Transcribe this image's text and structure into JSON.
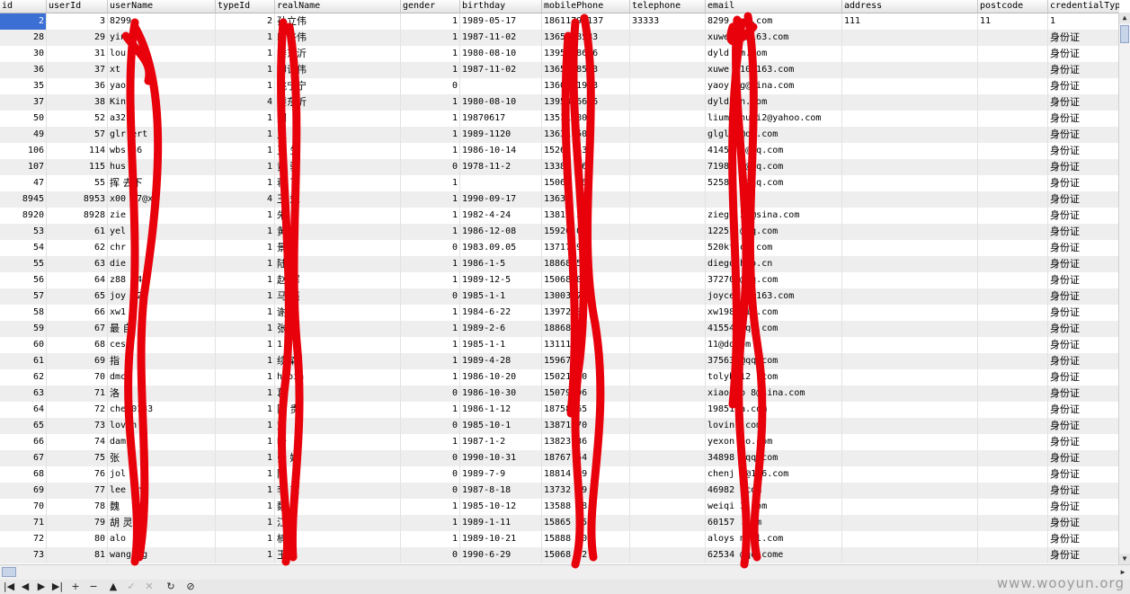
{
  "columns": [
    "id",
    "userId",
    "userName",
    "typeId",
    "realName",
    "gender",
    "birthday",
    "mobilePhone",
    "telephone",
    "email",
    "address",
    "postcode",
    "credentialTyp"
  ],
  "rows": [
    {
      "id": "2",
      "userId": "3",
      "userName": "8299",
      "typeId": "2",
      "realName": "孙立伟",
      "gender": "1",
      "birthday": "1989-05-17",
      "mobilePhone": "18611798137",
      "telephone": "33333",
      "email": "8299  @qq.com",
      "address": "111",
      "postcode": "11",
      "credentialTyp": "1"
    },
    {
      "id": "28",
      "userId": "29",
      "userName": "yin",
      "typeId": "1",
      "realName": "印许伟",
      "gender": "1",
      "birthday": "1987-11-02",
      "mobilePhone": "13656 8583",
      "telephone": "",
      "email": "xuwe  10@163.com",
      "address": "",
      "postcode": "",
      "credentialTyp": "身份证"
    },
    {
      "id": "30",
      "userId": "31",
      "userName": "lou",
      "typeId": "1",
      "realName": "楼东沂",
      "gender": "1",
      "birthday": "1980-08-10",
      "mobilePhone": "13958 8626",
      "telephone": "",
      "email": "dyld   om.com",
      "address": "",
      "postcode": "",
      "credentialTyp": "身份证"
    },
    {
      "id": "36",
      "userId": "37",
      "userName": "xt",
      "typeId": "1",
      "realName": "印许伟",
      "gender": "1",
      "birthday": "1987-11-02",
      "mobilePhone": "13656 8583",
      "telephone": "",
      "email": "xuwe  010@163.com",
      "address": "",
      "postcode": "",
      "credentialTyp": "身份证"
    },
    {
      "id": "35",
      "userId": "36",
      "userName": "yao",
      "typeId": "1",
      "realName": "姚宁宁",
      "gender": "0",
      "birthday": "",
      "mobilePhone": "13605 1923",
      "telephone": "",
      "email": "yaoy   ng@sina.com",
      "address": "",
      "postcode": "",
      "credentialTyp": "身份证"
    },
    {
      "id": "37",
      "userId": "38",
      "userName": "Kin",
      "typeId": "4",
      "realName": "楼东沂",
      "gender": "1",
      "birthday": "1980-08-10",
      "mobilePhone": "13958 6626",
      "telephone": "",
      "email": "dyld   sn.com",
      "address": "",
      "postcode": "",
      "credentialTyp": "身份证"
    },
    {
      "id": "50",
      "userId": "52",
      "userName": "a32",
      "typeId": "1",
      "realName": "刘",
      "gender": "1",
      "birthday": "19870617",
      "mobilePhone": "13511 808",
      "telephone": "",
      "email": "liumi  huai2@yahoo.com",
      "address": "",
      "postcode": "",
      "credentialTyp": "身份证"
    },
    {
      "id": "49",
      "userId": "57",
      "userName": "glr  ert",
      "typeId": "1",
      "realName": "王",
      "gender": "1",
      "birthday": " 1989-1120",
      "mobilePhone": "13631 508",
      "telephone": "",
      "email": "glgl   8@qq.com",
      "address": "",
      "postcode": "",
      "credentialTyp": "身份证"
    },
    {
      "id": "106",
      "userId": "114",
      "userName": "wbs  36",
      "typeId": "1",
      "realName": "王  生",
      "gender": "1",
      "birthday": "1986-10-14",
      "mobilePhone": "15267 432",
      "telephone": "",
      "email": "41456  8@qq.com",
      "address": "",
      "postcode": "",
      "credentialTyp": "身份证"
    },
    {
      "id": "107",
      "userId": "115",
      "userName": "hus",
      "typeId": "1",
      "realName": "黄  骏",
      "gender": "0",
      "birthday": "1978-11-2",
      "mobilePhone": "13388 367",
      "telephone": "",
      "email": "71986  9@qq.com",
      "address": "",
      "postcode": "",
      "credentialTyp": "身份证"
    },
    {
      "id": "47",
      "userId": "55",
      "userName": "挥  去下",
      "typeId": "1",
      "realName": "蒋  飞",
      "gender": "1",
      "birthday": "",
      "mobilePhone": "15068 06",
      "telephone": "",
      "email": "52589  6@qq.com",
      "address": "",
      "postcode": "",
      "credentialTyp": "身份证"
    },
    {
      "id": "8945",
      "userId": "8953",
      "userName": "x00  47@x",
      "typeId": "4",
      "realName": "王  斌",
      "gender": "1",
      "birthday": "1990-09-17",
      "mobilePhone": "13634 48",
      "telephone": "",
      "email": "",
      "address": "",
      "postcode": "",
      "credentialTyp": "身份证"
    },
    {
      "id": "8920",
      "userId": "8928",
      "userName": "zie",
      "typeId": "1",
      "realName": "朱",
      "gender": "1",
      "birthday": "1982-4-24",
      "mobilePhone": "13816 39",
      "telephone": "",
      "email": "ziegl  24@sina.com",
      "address": "",
      "postcode": "",
      "credentialTyp": "身份证"
    },
    {
      "id": "53",
      "userId": "61",
      "userName": "yel",
      "typeId": "1",
      "realName": "黄",
      "gender": "1",
      "birthday": "1986-12-08",
      "mobilePhone": "15920 0",
      "telephone": "",
      "email": "12251  @qq.com",
      "address": "",
      "postcode": "",
      "credentialTyp": "身份证"
    },
    {
      "id": "54",
      "userId": "62",
      "userName": "chr  n",
      "typeId": "1",
      "realName": "景",
      "gender": "0",
      "birthday": "1983.09.05",
      "mobilePhone": "13717 9",
      "telephone": "",
      "email": "520kt  om.com",
      "address": "",
      "postcode": "",
      "credentialTyp": "身份证"
    },
    {
      "id": "55",
      "userId": "63",
      "userName": "die",
      "typeId": "1",
      "realName": "陆",
      "gender": "1",
      "birthday": "1986-1-5",
      "mobilePhone": "18868 5",
      "telephone": "",
      "email": "diego  hoo.cn",
      "address": "",
      "postcode": "",
      "credentialTyp": "身份证"
    },
    {
      "id": "56",
      "userId": "64",
      "userName": "z88  74a",
      "typeId": "1",
      "realName": "赵  晖",
      "gender": "1",
      "birthday": "1989-12-5",
      "mobilePhone": "15068 07",
      "telephone": "",
      "email": "37270  @qq.com",
      "address": "",
      "postcode": "",
      "credentialTyp": "身份证"
    },
    {
      "id": "57",
      "userId": "65",
      "userName": "joy  52",
      "typeId": "1",
      "realName": "马  燕",
      "gender": "0",
      "birthday": "1985-1-1",
      "mobilePhone": "13003 76",
      "telephone": "",
      "email": "joyce  12@163.com",
      "address": "",
      "postcode": "",
      "credentialTyp": "身份证"
    },
    {
      "id": "58",
      "userId": "66",
      "userName": "xw1",
      "typeId": "1",
      "realName": "谢",
      "gender": "1",
      "birthday": "1984-6-22",
      "mobilePhone": "13972 88",
      "telephone": "",
      "email": "xw198  ail.com",
      "address": "",
      "postcode": "",
      "credentialTyp": "身份证"
    },
    {
      "id": "59",
      "userId": "67",
      "userName": "最  自",
      "typeId": "1",
      "realName": "张",
      "gender": "1",
      "birthday": "1989-2-6",
      "mobilePhone": "18868 0",
      "telephone": "",
      "email": "41554  @qq.com",
      "address": "",
      "postcode": "",
      "credentialTyp": "身份证"
    },
    {
      "id": "60",
      "userId": "68",
      "userName": "ces",
      "typeId": "1",
      "realName": "1",
      "gender": "1",
      "birthday": "1985-1-1",
      "mobilePhone": "13111 1",
      "telephone": "",
      "email": "11@dd  om",
      "address": "",
      "postcode": "",
      "credentialTyp": "身份证"
    },
    {
      "id": "61",
      "userId": "69",
      "userName": "指",
      "typeId": "1",
      "realName": "续  森",
      "gender": "1",
      "birthday": "1989-4-28",
      "mobilePhone": "15967 2",
      "telephone": "",
      "email": "37563  @qq.com",
      "address": "",
      "postcode": "",
      "credentialTyp": "身份证"
    },
    {
      "id": "62",
      "userId": "70",
      "userName": "dmc",
      "typeId": "1",
      "realName": "h  bin",
      "gender": "1",
      "birthday": "1986-10-20",
      "mobilePhone": "15021 80",
      "telephone": "",
      "email": "tolyb  12 .com",
      "address": "",
      "postcode": "",
      "credentialTyp": "身份证"
    },
    {
      "id": "63",
      "userId": "71",
      "userName": "洛",
      "typeId": "1",
      "realName": "葛",
      "gender": "0",
      "birthday": "1986-10-30",
      "mobilePhone": "15079 96",
      "telephone": "",
      "email": "xiaoq  o 8@sina.com",
      "address": "",
      "postcode": "",
      "credentialTyp": "身份证"
    },
    {
      "id": "64",
      "userId": "72",
      "userName": "che  0133",
      "typeId": "1",
      "realName": "陈  贵",
      "gender": "1",
      "birthday": "1986-1-12",
      "mobilePhone": "18758 65",
      "telephone": "",
      "email": "19851  a.com",
      "address": "",
      "postcode": "",
      "credentialTyp": "身份证"
    },
    {
      "id": "65",
      "userId": "73",
      "userName": "lov  n",
      "typeId": "1",
      "realName": "刘",
      "gender": "0",
      "birthday": "1985-10-1",
      "mobilePhone": "13871 70",
      "telephone": "",
      "email": "lovin  .com",
      "address": "",
      "postcode": "",
      "credentialTyp": "身份证"
    },
    {
      "id": "66",
      "userId": "74",
      "userName": "dam",
      "typeId": "1",
      "realName": "叶",
      "gender": "1",
      "birthday": "1987-1-2",
      "mobilePhone": "13823 36",
      "telephone": "",
      "email": "yexon  oo.com",
      "address": "",
      "postcode": "",
      "credentialTyp": "身份证"
    },
    {
      "id": "67",
      "userId": "75",
      "userName": "张",
      "typeId": "1",
      "realName": "张  婕",
      "gender": "0",
      "birthday": "1990-10-31",
      "mobilePhone": "18767 54",
      "telephone": "",
      "email": "34898  @qq.com",
      "address": "",
      "postcode": "",
      "credentialTyp": "身份证"
    },
    {
      "id": "68",
      "userId": "76",
      "userName": "jol",
      "typeId": "1",
      "realName": "陈",
      "gender": "0",
      "birthday": "1989-7-9",
      "mobilePhone": "18814 89",
      "telephone": "",
      "email": "chenj  9@126.com",
      "address": "",
      "postcode": "",
      "credentialTyp": "身份证"
    },
    {
      "id": "69",
      "userId": "77",
      "userName": "lee  an",
      "typeId": "1",
      "realName": "李  南",
      "gender": "0",
      "birthday": "1987-8-18",
      "mobilePhone": "13732 09",
      "telephone": "",
      "email": "46982  .com",
      "address": "",
      "postcode": "",
      "credentialTyp": "身份证"
    },
    {
      "id": "70",
      "userId": "78",
      "userName": "魏",
      "typeId": "1",
      "realName": "魏",
      "gender": "1",
      "birthday": "1985-10-12",
      "mobilePhone": "13588 98",
      "telephone": "",
      "email": "weiqi  3.com",
      "address": "",
      "postcode": "",
      "credentialTyp": "身份证"
    },
    {
      "id": "71",
      "userId": "79",
      "userName": "胡  灵",
      "typeId": "1",
      "realName": "  江民",
      "gender": "1",
      "birthday": "1989-1-11",
      "mobilePhone": "15865 35",
      "telephone": "",
      "email": "60157  .com",
      "address": "",
      "postcode": "",
      "credentialTyp": "身份证"
    },
    {
      "id": "72",
      "userId": "80",
      "userName": "alo",
      "typeId": "1",
      "realName": "  楠",
      "gender": "1",
      "birthday": "1989-10-21",
      "mobilePhone": "15888 30",
      "telephone": "",
      "email": "aloys  mail.com",
      "address": "",
      "postcode": "",
      "credentialTyp": "身份证"
    },
    {
      "id": "73",
      "userId": "81",
      "userName": "wang  ng",
      "typeId": "1",
      "realName": "王芳",
      "gender": "0",
      "birthday": "1990-6-29",
      "mobilePhone": "15068 72",
      "telephone": "",
      "email": "62534  @qq.come",
      "address": "",
      "postcode": "",
      "credentialTyp": "身份证"
    }
  ],
  "toolbar": {
    "first": "|◀",
    "prev": "◀",
    "next": "▶",
    "last": "▶|",
    "add": "+",
    "remove": "−",
    "up": "▲",
    "apply": "✓",
    "cancel": "✕",
    "refresh": "↻",
    "stop": "⊘"
  },
  "watermark": "www.wooyun.org",
  "colors": {
    "selected_cell": "#3b6fd4",
    "scribble": "#e8000b",
    "alt_row": "#eeeeee"
  }
}
